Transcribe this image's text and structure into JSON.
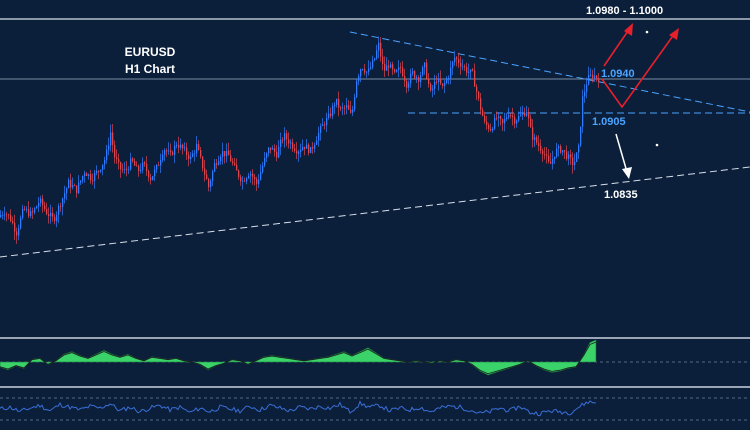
{
  "chart_data": {
    "type": "candlestick",
    "title": "EURUSD",
    "subtitle": "H1 Chart",
    "colors": {
      "background": "#0b1f3b",
      "bull": "#2f7bff",
      "bear": "#e0454b",
      "level_line": "#9fb3c8",
      "resistance_line": "#4aa3ff",
      "support_line": "#d8e0ea",
      "histogram": "#39d36a",
      "oscillator": "#3a6fd8",
      "arrow_up": "#e8202a",
      "arrow_down": "#ffffff"
    },
    "levels": {
      "target": "1.0980 - 1.1000",
      "resistance": "1.0940",
      "pivot": "1.0905",
      "support": "1.0835"
    },
    "price_path": [
      [
        0,
        1.0798
      ],
      [
        6,
        1.0804
      ],
      [
        12,
        1.0796
      ],
      [
        18,
        1.0782
      ],
      [
        25,
        1.0806
      ],
      [
        33,
        1.08
      ],
      [
        41,
        1.0815
      ],
      [
        48,
        1.0803
      ],
      [
        55,
        1.0795
      ],
      [
        63,
        1.0815
      ],
      [
        70,
        1.0833
      ],
      [
        78,
        1.0826
      ],
      [
        86,
        1.0845
      ],
      [
        93,
        1.0838
      ],
      [
        100,
        1.0846
      ],
      [
        107,
        1.0859
      ],
      [
        112,
        1.0885
      ],
      [
        116,
        1.086
      ],
      [
        121,
        1.0848
      ],
      [
        127,
        1.0845
      ],
      [
        133,
        1.0856
      ],
      [
        139,
        1.0845
      ],
      [
        145,
        1.0852
      ],
      [
        152,
        1.0838
      ],
      [
        159,
        1.085
      ],
      [
        165,
        1.0869
      ],
      [
        172,
        1.0861
      ],
      [
        178,
        1.0874
      ],
      [
        185,
        1.0867
      ],
      [
        192,
        1.0858
      ],
      [
        198,
        1.0871
      ],
      [
        204,
        1.085
      ],
      [
        210,
        1.0829
      ],
      [
        216,
        1.0852
      ],
      [
        223,
        1.0865
      ],
      [
        230,
        1.0861
      ],
      [
        237,
        1.0846
      ],
      [
        244,
        1.0835
      ],
      [
        251,
        1.0845
      ],
      [
        258,
        1.0832
      ],
      [
        264,
        1.0851
      ],
      [
        271,
        1.087
      ],
      [
        278,
        1.0863
      ],
      [
        285,
        1.0882
      ],
      [
        292,
        1.0874
      ],
      [
        299,
        1.0866
      ],
      [
        305,
        1.0872
      ],
      [
        312,
        1.0866
      ],
      [
        318,
        1.088
      ],
      [
        325,
        1.0894
      ],
      [
        331,
        1.0902
      ],
      [
        337,
        1.0918
      ],
      [
        342,
        1.0908
      ],
      [
        348,
        1.0911
      ],
      [
        353,
        1.0901
      ],
      [
        358,
        1.094
      ],
      [
        363,
        1.0954
      ],
      [
        369,
        1.0946
      ],
      [
        375,
        1.0958
      ],
      [
        380,
        1.0975
      ],
      [
        385,
        1.0948
      ],
      [
        390,
        1.0955
      ],
      [
        396,
        1.0944
      ],
      [
        402,
        1.0952
      ],
      [
        408,
        1.0935
      ],
      [
        414,
        1.0946
      ],
      [
        420,
        1.0941
      ],
      [
        426,
        1.0953
      ],
      [
        432,
        1.0925
      ],
      [
        438,
        1.094
      ],
      [
        444,
        1.0931
      ],
      [
        450,
        1.0944
      ],
      [
        456,
        1.0962
      ],
      [
        462,
        1.0956
      ],
      [
        468,
        1.0949
      ],
      [
        474,
        1.0945
      ],
      [
        480,
        1.0918
      ],
      [
        486,
        1.0894
      ],
      [
        492,
        1.0889
      ],
      [
        498,
        1.09
      ],
      [
        504,
        1.0893
      ],
      [
        510,
        1.0906
      ],
      [
        516,
        1.0898
      ],
      [
        522,
        1.0902
      ],
      [
        528,
        1.0908
      ],
      [
        533,
        1.0882
      ],
      [
        539,
        1.0873
      ],
      [
        545,
        1.0865
      ],
      [
        551,
        1.085
      ],
      [
        557,
        1.0866
      ],
      [
        563,
        1.0868
      ],
      [
        569,
        1.086
      ],
      [
        575,
        1.0852
      ],
      [
        580,
        1.0868
      ],
      [
        584,
        1.092
      ],
      [
        589,
        1.094
      ],
      [
        594,
        1.0944
      ],
      [
        598,
        1.0942
      ]
    ],
    "histogram": [
      [
        0,
        -0.4
      ],
      [
        8,
        -0.6
      ],
      [
        16,
        -0.3
      ],
      [
        24,
        -0.5
      ],
      [
        32,
        0.2
      ],
      [
        40,
        0.3
      ],
      [
        48,
        -0.2
      ],
      [
        56,
        0.1
      ],
      [
        64,
        0.6
      ],
      [
        72,
        0.8
      ],
      [
        80,
        0.5
      ],
      [
        88,
        0.3
      ],
      [
        96,
        0.6
      ],
      [
        104,
        0.9
      ],
      [
        112,
        0.6
      ],
      [
        120,
        0.4
      ],
      [
        128,
        0.6
      ],
      [
        136,
        0.3
      ],
      [
        144,
        0.1
      ],
      [
        152,
        0.4
      ],
      [
        160,
        0.3
      ],
      [
        168,
        0.2
      ],
      [
        176,
        0.3
      ],
      [
        184,
        0.1
      ],
      [
        192,
        0.0
      ],
      [
        200,
        -0.2
      ],
      [
        208,
        -0.6
      ],
      [
        216,
        -0.3
      ],
      [
        224,
        -0.1
      ],
      [
        232,
        0.2
      ],
      [
        240,
        0.1
      ],
      [
        248,
        -0.2
      ],
      [
        256,
        0.1
      ],
      [
        264,
        0.4
      ],
      [
        272,
        0.5
      ],
      [
        280,
        0.4
      ],
      [
        288,
        0.3
      ],
      [
        296,
        0.2
      ],
      [
        304,
        0.1
      ],
      [
        312,
        0.2
      ],
      [
        320,
        0.3
      ],
      [
        328,
        0.4
      ],
      [
        336,
        0.6
      ],
      [
        344,
        0.8
      ],
      [
        352,
        0.5
      ],
      [
        360,
        0.8
      ],
      [
        368,
        1.1
      ],
      [
        376,
        0.7
      ],
      [
        384,
        0.3
      ],
      [
        392,
        0.2
      ],
      [
        400,
        0.1
      ],
      [
        408,
        0.0
      ],
      [
        416,
        0.1
      ],
      [
        424,
        0.0
      ],
      [
        432,
        -0.1
      ],
      [
        440,
        0.1
      ],
      [
        448,
        0.0
      ],
      [
        456,
        0.2
      ],
      [
        464,
        0.1
      ],
      [
        472,
        -0.2
      ],
      [
        480,
        -0.7
      ],
      [
        488,
        -1.0
      ],
      [
        496,
        -0.8
      ],
      [
        504,
        -0.6
      ],
      [
        512,
        -0.4
      ],
      [
        520,
        -0.2
      ],
      [
        528,
        0.1
      ],
      [
        536,
        -0.3
      ],
      [
        544,
        -0.6
      ],
      [
        552,
        -0.8
      ],
      [
        560,
        -0.7
      ],
      [
        568,
        -0.5
      ],
      [
        576,
        -0.4
      ],
      [
        584,
        0.6
      ],
      [
        590,
        1.5
      ],
      [
        596,
        1.7
      ]
    ],
    "oscillator": [
      [
        0,
        0.0
      ],
      [
        10,
        0.2
      ],
      [
        20,
        -0.3
      ],
      [
        30,
        0.1
      ],
      [
        40,
        0.4
      ],
      [
        50,
        -0.2
      ],
      [
        60,
        0.5
      ],
      [
        70,
        0.2
      ],
      [
        80,
        -0.1
      ],
      [
        90,
        0.3
      ],
      [
        100,
        0.1
      ],
      [
        110,
        0.6
      ],
      [
        120,
        -0.2
      ],
      [
        130,
        0.2
      ],
      [
        140,
        -0.3
      ],
      [
        150,
        0.1
      ],
      [
        160,
        0.4
      ],
      [
        170,
        -0.1
      ],
      [
        180,
        0.2
      ],
      [
        190,
        -0.4
      ],
      [
        200,
        0.1
      ],
      [
        210,
        -0.3
      ],
      [
        220,
        0.2
      ],
      [
        230,
        0.0
      ],
      [
        240,
        -0.2
      ],
      [
        250,
        0.3
      ],
      [
        260,
        -0.1
      ],
      [
        270,
        0.4
      ],
      [
        280,
        0.1
      ],
      [
        290,
        -0.2
      ],
      [
        300,
        0.2
      ],
      [
        310,
        0.0
      ],
      [
        320,
        0.3
      ],
      [
        330,
        0.1
      ],
      [
        340,
        0.5
      ],
      [
        350,
        -0.3
      ],
      [
        360,
        0.6
      ],
      [
        370,
        0.2
      ],
      [
        380,
        0.4
      ],
      [
        390,
        -0.2
      ],
      [
        400,
        0.1
      ],
      [
        410,
        -0.1
      ],
      [
        420,
        0.2
      ],
      [
        430,
        -0.3
      ],
      [
        440,
        0.1
      ],
      [
        450,
        0.3
      ],
      [
        460,
        0.2
      ],
      [
        470,
        -0.1
      ],
      [
        480,
        -0.5
      ],
      [
        490,
        -0.3
      ],
      [
        500,
        0.1
      ],
      [
        510,
        -0.2
      ],
      [
        520,
        0.3
      ],
      [
        530,
        -0.4
      ],
      [
        540,
        -0.5
      ],
      [
        550,
        -0.2
      ],
      [
        560,
        -0.3
      ],
      [
        570,
        -0.4
      ],
      [
        580,
        0.3
      ],
      [
        588,
        0.8
      ],
      [
        596,
        0.7
      ]
    ]
  }
}
